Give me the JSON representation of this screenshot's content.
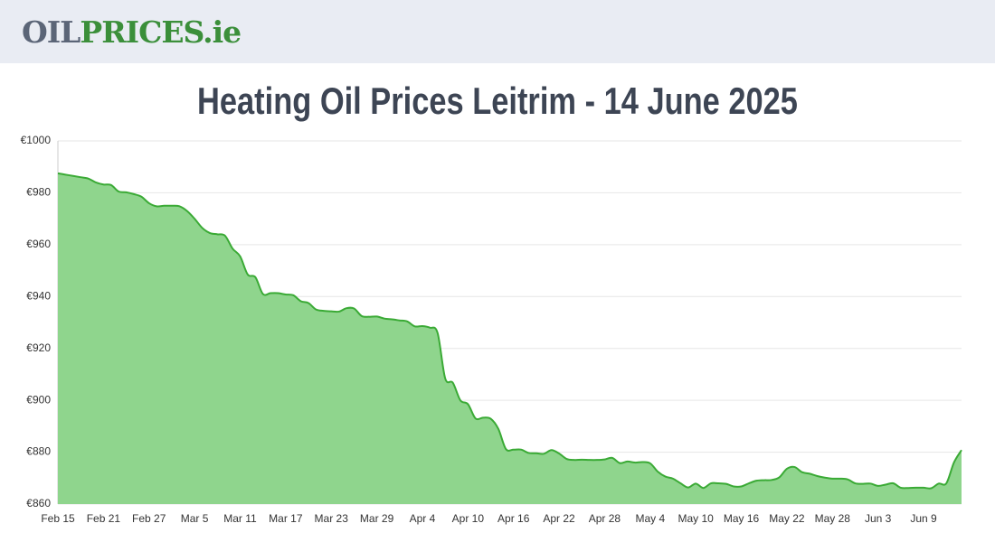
{
  "header": {
    "logo": [
      "OIL",
      "PRICES",
      ".ie"
    ]
  },
  "chart_data": {
    "type": "area",
    "title": "Heating Oil Prices Leitrim - 14 June 2025",
    "categories": [
      "Feb 15",
      null,
      null,
      null,
      null,
      null,
      "Feb 21",
      null,
      null,
      null,
      null,
      null,
      "Feb 27",
      null,
      null,
      null,
      null,
      null,
      "Mar 5",
      null,
      null,
      null,
      null,
      null,
      "Mar 11",
      null,
      null,
      null,
      null,
      null,
      "Mar 17",
      null,
      null,
      null,
      null,
      null,
      "Mar 23",
      null,
      null,
      null,
      null,
      null,
      "Mar 29",
      null,
      null,
      null,
      null,
      null,
      "Apr 4",
      null,
      null,
      null,
      null,
      null,
      "Apr 10",
      null,
      null,
      null,
      null,
      null,
      "Apr 16",
      null,
      null,
      null,
      null,
      null,
      "Apr 22",
      null,
      null,
      null,
      null,
      null,
      "Apr 28",
      null,
      null,
      null,
      null,
      null,
      "May 4",
      null,
      null,
      null,
      null,
      null,
      "May 10",
      null,
      null,
      null,
      null,
      null,
      "May 16",
      null,
      null,
      null,
      null,
      null,
      "May 22",
      null,
      null,
      null,
      null,
      null,
      "May 28",
      null,
      null,
      null,
      null,
      null,
      "Jun 3",
      null,
      null,
      null,
      null,
      null,
      "Jun 9",
      null,
      null,
      null,
      null,
      null
    ],
    "values": [
      987.5,
      987,
      986.5,
      986,
      985.5,
      984,
      983.2,
      983,
      980.5,
      980.2,
      979.5,
      978.5,
      976,
      974.8,
      975,
      975,
      974.8,
      973,
      970,
      966.5,
      964.5,
      964,
      963.5,
      958.5,
      955.5,
      948.5,
      947.5,
      941,
      941.3,
      941.3,
      940.8,
      940.5,
      938.2,
      937.5,
      935,
      934.5,
      934.3,
      934.2,
      935.5,
      935.4,
      932.5,
      932.2,
      932.3,
      931.5,
      931.2,
      930.8,
      930.4,
      928.5,
      928.6,
      928,
      926,
      908.5,
      906.8,
      900,
      898.5,
      893,
      893.3,
      892.9,
      889,
      881.2,
      881,
      881,
      879.7,
      879.6,
      879.4,
      880.8,
      879.5,
      877.4,
      877,
      877.1,
      877,
      877,
      877.2,
      877.8,
      875.8,
      876.4,
      876,
      876.2,
      875.7,
      872.5,
      870.6,
      869.8,
      868,
      866.4,
      867.9,
      866.2,
      868,
      868,
      867.8,
      866.8,
      866.8,
      868,
      869,
      869.2,
      869.3,
      870.3,
      873.6,
      874.3,
      872.3,
      871.7,
      870.8,
      870.2,
      869.8,
      869.8,
      869.5,
      868,
      867.8,
      867.9,
      867,
      867.5,
      868,
      866.3,
      866.2,
      866.3,
      866.3,
      866.1,
      867.9,
      868,
      876,
      880.8
    ],
    "color": "#3aaa35",
    "fill": "#8fd58d",
    "ylim": [
      860,
      1000
    ],
    "yticks": [
      {
        "value": 860,
        "label": "€860"
      },
      {
        "value": 880,
        "label": "€880"
      },
      {
        "value": 900,
        "label": "€900"
      },
      {
        "value": 920,
        "label": "€920"
      },
      {
        "value": 940,
        "label": "€940"
      },
      {
        "value": 960,
        "label": "€960"
      },
      {
        "value": 980,
        "label": "€980"
      },
      {
        "value": 1000,
        "label": "€1000"
      }
    ],
    "grid": true
  }
}
